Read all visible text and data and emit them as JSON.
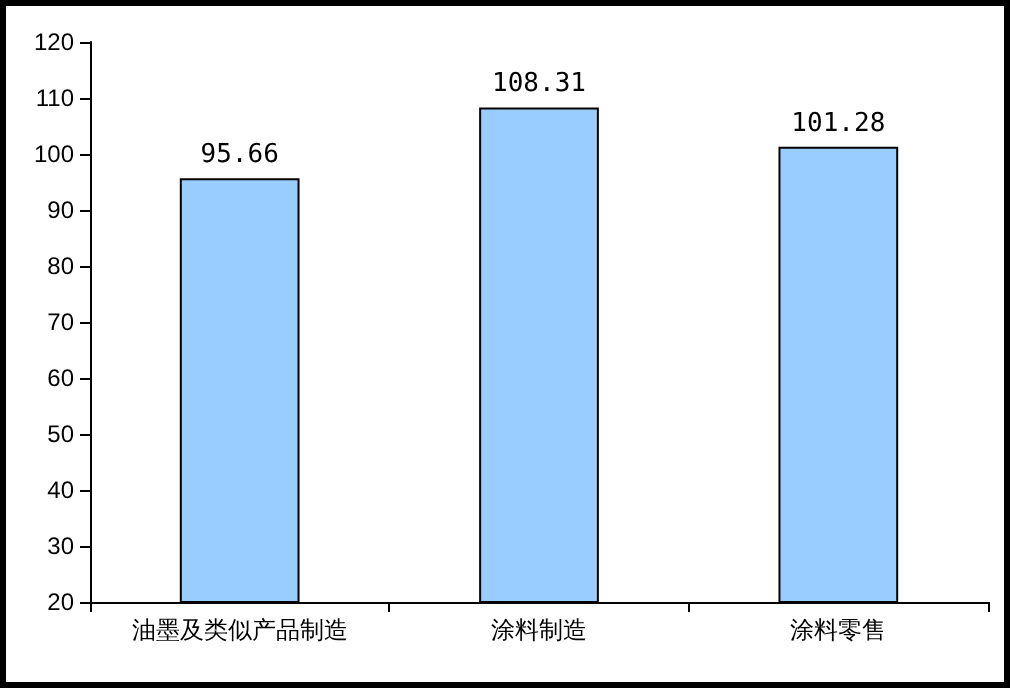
{
  "chart_data": {
    "type": "bar",
    "categories": [
      "油墨及类似产品制造",
      "涂料制造",
      "涂料零售"
    ],
    "values": [
      95.66,
      108.31,
      101.28
    ],
    "color": "#99ccff",
    "data_labels": true,
    "grid": false,
    "ylim": [
      20,
      120
    ],
    "yticks": [
      20,
      30,
      40,
      50,
      60,
      70,
      80,
      90,
      100,
      110,
      120
    ]
  }
}
